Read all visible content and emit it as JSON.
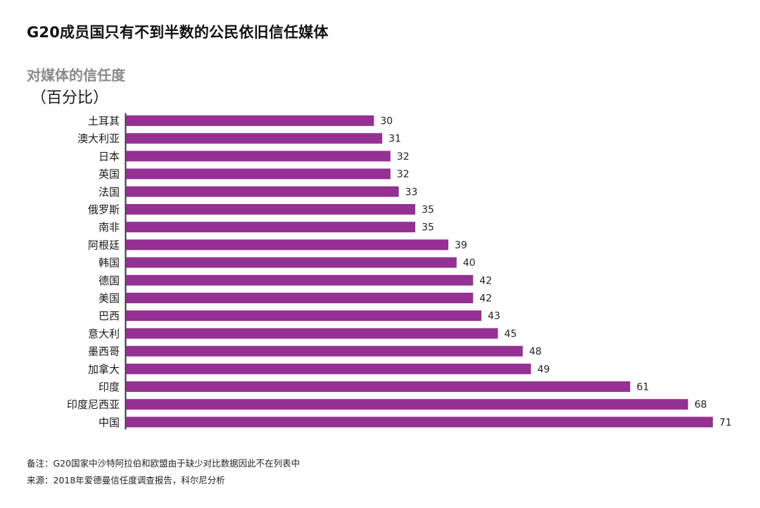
{
  "title": "G20成员国只有不到半数的公民依旧信任媒体",
  "subtitle": "对媒体的信任度",
  "unit": "（百分比）",
  "note": "备注：G20国家中沙特阿拉伯和欧盟由于缺少对比数据因此不在列表中",
  "source": "来源：2018年爱德曼信任度调查报告，科尔尼分析",
  "colors": {
    "bar": "#943192",
    "axis": "#333333"
  },
  "chart_data": {
    "type": "bar",
    "orientation": "horizontal",
    "categories": [
      "土耳其",
      "澳大利亚",
      "日本",
      "英国",
      "法国",
      "俄罗斯",
      "南非",
      "阿根廷",
      "韩国",
      "德国",
      "美国",
      "巴西",
      "意大利",
      "墨西哥",
      "加拿大",
      "印度",
      "印度尼西亚",
      "中国"
    ],
    "values": [
      30,
      31,
      32,
      32,
      33,
      35,
      35,
      39,
      40,
      42,
      42,
      43,
      45,
      48,
      49,
      61,
      68,
      71
    ],
    "xlim": [
      0,
      71
    ],
    "data_labels": true,
    "grid": false,
    "legend": "none"
  }
}
